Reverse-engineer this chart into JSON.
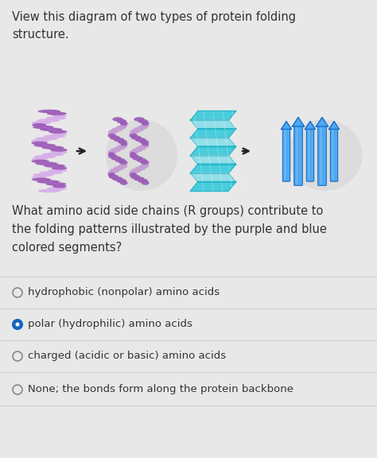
{
  "bg_color": "#d8d8d8",
  "panel_color": "#e8e8e8",
  "title_text": "View this diagram of two types of protein folding\nstructure.",
  "question_text": "What amino acid side chains (R groups) contribute to\nthe folding patterns illustrated by the purple and blue\ncolored segments?",
  "options": [
    {
      "text": "hydrophobic (nonpolar) amino acids",
      "selected": false
    },
    {
      "text": "polar (hydrophilic) amino acids",
      "selected": true
    },
    {
      "text": "charged (acidic or basic) amino acids",
      "selected": false
    },
    {
      "text": "None; the bonds form along the protein backbone",
      "selected": false
    }
  ],
  "title_fontsize": 10.5,
  "question_fontsize": 10.5,
  "option_fontsize": 9.5,
  "radio_color_unselected": "#888888",
  "radio_color_selected": "#1565C0",
  "text_color": "#333333",
  "helix_color1": "#9b59b6",
  "helix_color2": "#d7aee8",
  "helix_color3": "#c39bd3",
  "beta_color1": "#26c6da",
  "beta_color2": "#80deea",
  "beta_color3": "#00838f",
  "strand_color1": "#42a5f5",
  "strand_color2": "#1565c0",
  "strand_color3": "#90caf9"
}
